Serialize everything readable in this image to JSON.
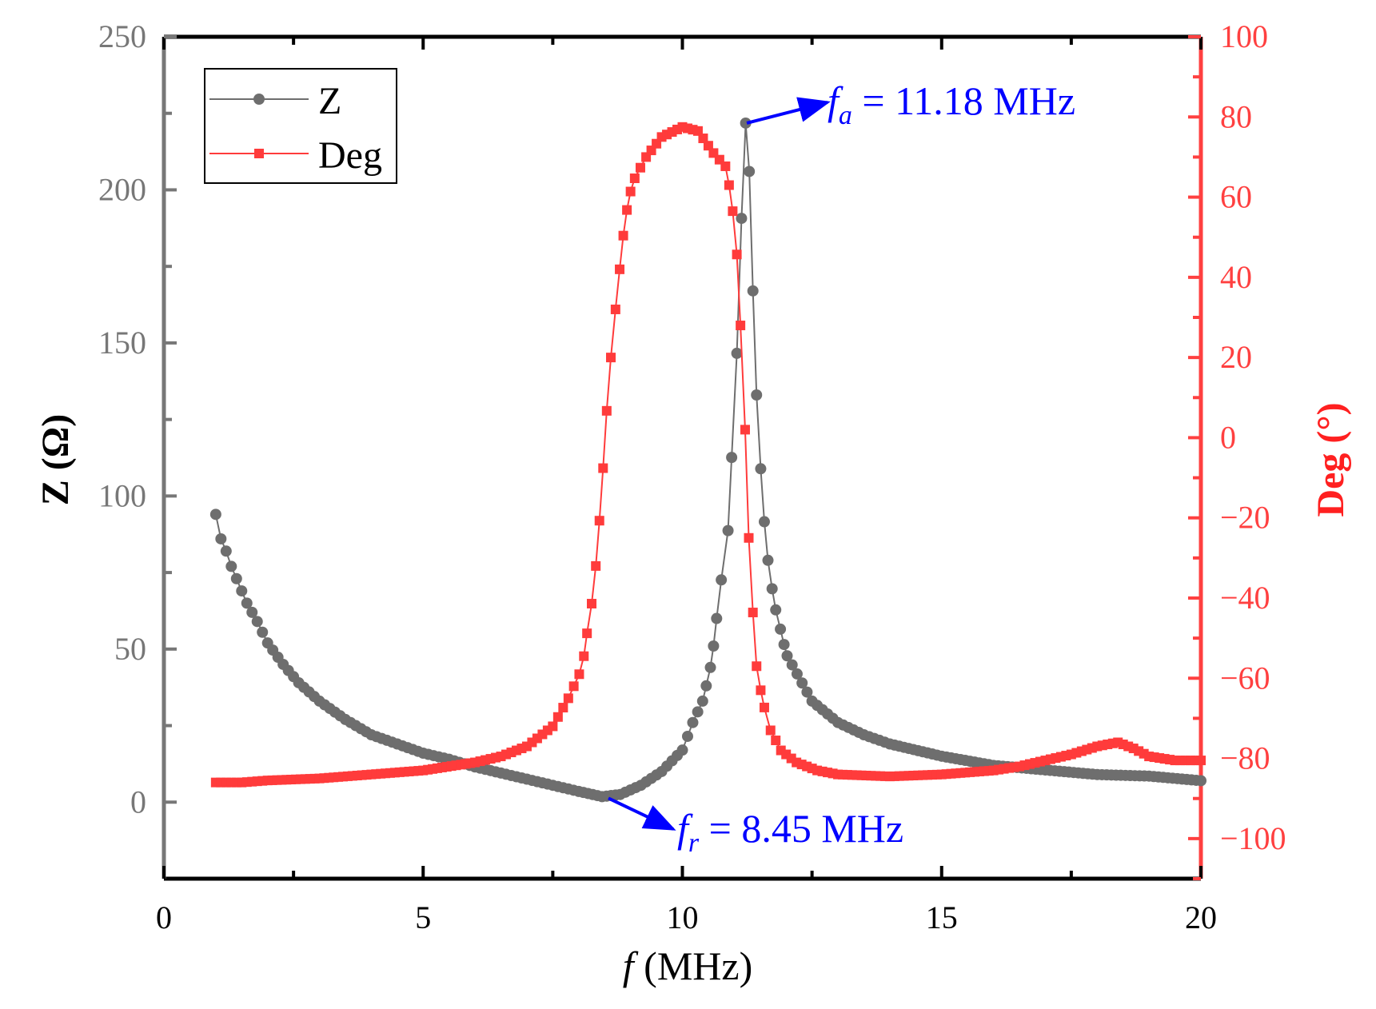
{
  "chart_data": {
    "type": "line",
    "title": "",
    "xlabel_italic": "f",
    "xlabel_rest": " (MHz)",
    "ylabel_left": "Z (Ω)",
    "ylabel_right": "Deg (°)",
    "xlim": [
      0,
      20
    ],
    "ylim_left": [
      -25,
      250
    ],
    "ylim_right": [
      -110,
      100
    ],
    "xticks": [
      0,
      5,
      10,
      15,
      20
    ],
    "yticks_left": [
      0,
      50,
      100,
      150,
      200,
      250
    ],
    "yticks_right": [
      -100,
      -80,
      -60,
      -40,
      -20,
      0,
      20,
      40,
      60,
      80,
      100
    ],
    "grid": false,
    "legend": {
      "position": "top-left",
      "entries": [
        "Z",
        "Deg"
      ]
    },
    "colors": {
      "Z": "#6e6e6e",
      "Deg": "#ff3b3b",
      "annotation": "#0000ff",
      "left_axis": "#777777",
      "right_axis": "#ff4040"
    },
    "series": [
      {
        "name": "Z",
        "axis": "left",
        "marker": "circle",
        "x": [
          1.0,
          1.1,
          1.2,
          1.3,
          1.4,
          1.5,
          1.6,
          1.8,
          2.0,
          2.3,
          2.6,
          3.0,
          3.5,
          4.0,
          4.5,
          5.0,
          5.5,
          6.0,
          6.5,
          7.0,
          7.5,
          8.0,
          8.45,
          8.8,
          9.2,
          9.6,
          10.0,
          10.2,
          10.39,
          10.46,
          10.54,
          10.6,
          10.66,
          10.75,
          10.88,
          10.95,
          11.05,
          11.14,
          11.22,
          11.29,
          11.36,
          11.43,
          11.51,
          11.58,
          11.65,
          11.73,
          11.8,
          11.89,
          11.96,
          12.02,
          12.5,
          13.0,
          13.5,
          14.0,
          15.0,
          16.0,
          17.0,
          18.0,
          19.0,
          20.0
        ],
        "y": [
          94,
          86,
          82,
          77,
          73,
          69,
          65,
          59,
          52,
          45,
          39,
          33,
          27,
          22,
          19,
          16,
          14,
          11.5,
          9.5,
          7.5,
          5.5,
          3.5,
          1.8,
          2.5,
          5.5,
          10,
          17,
          26,
          33,
          38,
          44,
          51,
          60,
          72.6,
          88.7,
          112.6,
          146.6,
          190.7,
          221.8,
          206,
          167,
          133,
          108.9,
          91.6,
          79,
          69.7,
          62.8,
          56.5,
          51.5,
          47.8,
          33,
          26,
          22,
          19,
          15,
          12,
          10.5,
          9,
          8.5,
          7
        ]
      },
      {
        "name": "Deg",
        "axis": "right",
        "marker": "square",
        "x": [
          1.0,
          1.5,
          2.0,
          3.0,
          4.0,
          5.0,
          6.0,
          6.5,
          7.0,
          7.5,
          7.8,
          8.01,
          8.1,
          8.16,
          8.25,
          8.33,
          8.4,
          8.47,
          8.54,
          8.62,
          8.71,
          8.79,
          8.86,
          8.93,
          9.0,
          9.08,
          9.3,
          9.6,
          10.0,
          10.3,
          10.6,
          10.83,
          10.9,
          10.97,
          11.05,
          11.12,
          11.21,
          11.28,
          11.36,
          11.43,
          11.51,
          11.58,
          11.7,
          11.9,
          12.2,
          12.6,
          13.0,
          14.0,
          15.0,
          16.0,
          16.5,
          17.0,
          17.5,
          18.0,
          18.4,
          18.7,
          19.0,
          19.5,
          20.0
        ],
        "y": [
          -86,
          -86,
          -85.5,
          -85,
          -84,
          -83,
          -81,
          -79.5,
          -77,
          -72,
          -65,
          -59,
          -54.5,
          -48.8,
          -41.4,
          -32,
          -20.7,
          -7.6,
          6.7,
          20,
          32,
          42,
          50.4,
          56.8,
          61.4,
          64.7,
          70,
          75,
          77.5,
          76.5,
          71,
          67.7,
          63,
          56.5,
          45.7,
          28,
          2,
          -25,
          -43.6,
          -57,
          -63,
          -67.3,
          -73,
          -78,
          -81,
          -83,
          -84,
          -84.5,
          -84,
          -83,
          -82,
          -80.5,
          -79,
          -77,
          -76,
          -77.5,
          -79.5,
          -80.5,
          -80.5
        ]
      }
    ],
    "annotations": [
      {
        "label_italic": "f",
        "label_sub": "a",
        "label_rest": " = 11.18 MHz",
        "point": [
          11.18,
          221.8
        ]
      },
      {
        "label_italic": "f",
        "label_sub": "r",
        "label_rest": " = 8.45 MHz",
        "point": [
          8.45,
          1.8
        ]
      }
    ]
  }
}
